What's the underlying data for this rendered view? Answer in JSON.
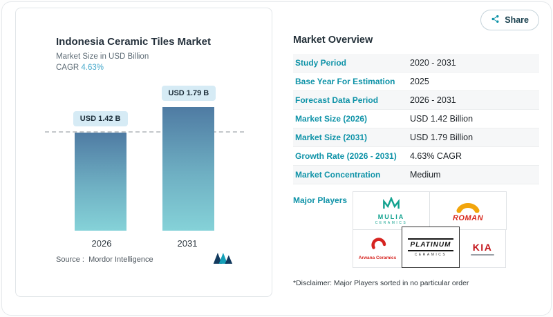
{
  "colors": {
    "accent_teal": "#0f93a8",
    "cagr_blue": "#44a8cb",
    "bar_gradient_top": "#4f7ba3",
    "bar_gradient_bottom": "#85d2d8",
    "value_label_bg": "#d6ebf5",
    "row_stripe": "#f6f7f8"
  },
  "share": {
    "label": "Share"
  },
  "chart_card": {
    "title": "Indonesia Ceramic Tiles Market",
    "subtitle": "Market Size in USD Billion",
    "cagr_label": "CAGR ",
    "cagr_value": "4.63%",
    "source_label": "Source :",
    "source_value": "Mordor Intelligence"
  },
  "chart_data": {
    "type": "bar",
    "title": "Indonesia Ceramic Tiles Market",
    "ylabel": "Market Size in USD Billion",
    "categories": [
      "2026",
      "2031"
    ],
    "values": [
      1.42,
      1.79
    ],
    "value_labels": [
      "USD 1.42 B",
      "USD 1.79 B"
    ],
    "ylim": [
      0,
      2.14
    ],
    "reference_line": 1.42,
    "grid": false,
    "legend": false
  },
  "overview": {
    "title": "Market Overview",
    "rows": [
      {
        "label": "Study Period",
        "value": "2020 - 2031"
      },
      {
        "label": "Base Year For Estimation",
        "value": "2025"
      },
      {
        "label": "Forecast Data Period",
        "value": "2026 - 2031"
      },
      {
        "label": "Market Size (2026)",
        "value": "USD 1.42 Billion"
      },
      {
        "label": "Market Size (2031)",
        "value": "USD 1.79 Billion"
      },
      {
        "label": "Growth Rate (2026 - 2031)",
        "value": "4.63% CAGR"
      },
      {
        "label": "Market Concentration",
        "value": "Medium"
      }
    ],
    "major_players_label": "Major Players",
    "players": [
      {
        "name": "MULIA",
        "sub": "CERAMICS"
      },
      {
        "name": "ROMAN",
        "sub": ""
      },
      {
        "name": "Arwana Ceramics",
        "sub": ""
      },
      {
        "name": "PLATINUM",
        "sub": "CERAMICS"
      },
      {
        "name": "KIA",
        "sub": ""
      }
    ],
    "disclaimer": "*Disclaimer: Major Players sorted in no particular order"
  }
}
